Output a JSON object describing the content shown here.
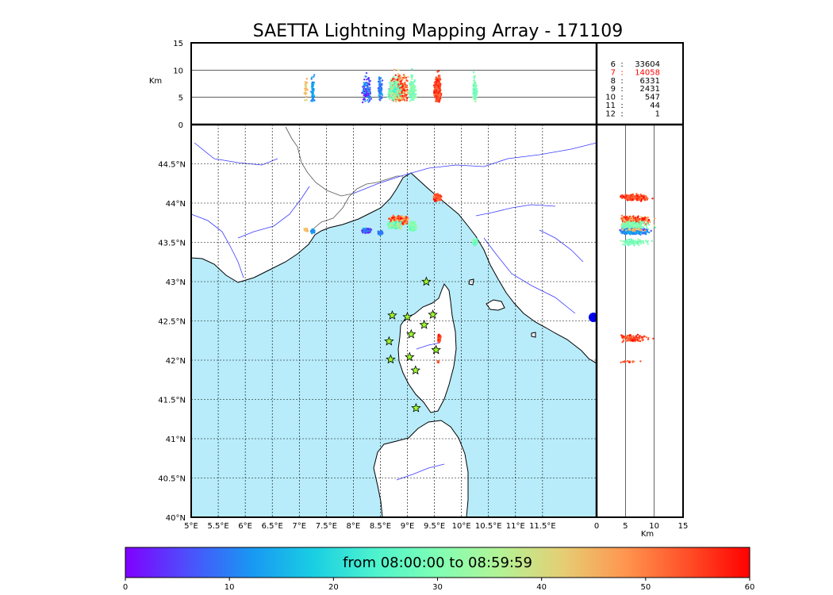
{
  "title": "SAETTA Lightning Mapping Array - 171109",
  "colorbar": {
    "label": "from 08:00:00 to 08:59:59",
    "min": 0,
    "max": 60,
    "ticks": [
      "0",
      "10",
      "20",
      "30",
      "40",
      "50",
      "60"
    ]
  },
  "colors": {
    "sea": "#b8ecfa",
    "land": "#ffffff",
    "rivers": "#3a3aff",
    "stations": "#9cff2c"
  },
  "map": {
    "lon_range": [
      5,
      12.5
    ],
    "lat_range": [
      40,
      45
    ],
    "lon_ticks": [
      "5°E",
      "5.5°E",
      "6°E",
      "6.5°E",
      "7°E",
      "7.5°E",
      "8°E",
      "8.5°E",
      "9°E",
      "9.5°E",
      "10°E",
      "10.5°E",
      "11°E",
      "11.5°E"
    ],
    "lat_ticks": [
      "40°N",
      "40.5°N",
      "41°N",
      "41.5°N",
      "42°N",
      "42.5°N",
      "43°N",
      "43.5°N",
      "44°N",
      "44.5°N"
    ],
    "stations": [
      {
        "lon": 9.35,
        "lat": 43.0
      },
      {
        "lon": 8.72,
        "lat": 42.57
      },
      {
        "lon": 9.0,
        "lat": 42.55
      },
      {
        "lon": 9.47,
        "lat": 42.58
      },
      {
        "lon": 9.31,
        "lat": 42.45
      },
      {
        "lon": 9.07,
        "lat": 42.33
      },
      {
        "lon": 8.66,
        "lat": 42.24
      },
      {
        "lon": 9.53,
        "lat": 42.13
      },
      {
        "lon": 8.69,
        "lat": 42.01
      },
      {
        "lon": 9.04,
        "lat": 42.04
      },
      {
        "lon": 9.15,
        "lat": 41.87
      },
      {
        "lon": 9.16,
        "lat": 41.39
      }
    ],
    "clusters": [
      {
        "lon": 8.85,
        "lat": 43.78,
        "spread": [
          0.22,
          0.07
        ],
        "tmin": 42,
        "tmax": 60,
        "n": 380
      },
      {
        "lon": 8.75,
        "lat": 43.72,
        "spread": [
          0.2,
          0.06
        ],
        "tmin": 22,
        "tmax": 40,
        "n": 160
      },
      {
        "lon": 9.1,
        "lat": 43.7,
        "spread": [
          0.09,
          0.08
        ],
        "tmin": 26,
        "tmax": 34,
        "n": 120
      },
      {
        "lon": 9.55,
        "lat": 44.07,
        "spread": [
          0.08,
          0.06
        ],
        "tmin": 50,
        "tmax": 60,
        "n": 200
      },
      {
        "lon": 8.25,
        "lat": 43.65,
        "spread": [
          0.12,
          0.04
        ],
        "tmin": 0,
        "tmax": 14,
        "n": 110
      },
      {
        "lon": 8.5,
        "lat": 43.62,
        "spread": [
          0.06,
          0.03
        ],
        "tmin": 6,
        "tmax": 14,
        "n": 60
      },
      {
        "lon": 7.25,
        "lat": 43.64,
        "spread": [
          0.05,
          0.04
        ],
        "tmin": 10,
        "tmax": 18,
        "n": 60
      },
      {
        "lon": 7.12,
        "lat": 43.66,
        "spread": [
          0.04,
          0.02
        ],
        "tmin": 40,
        "tmax": 48,
        "n": 25
      },
      {
        "lon": 10.25,
        "lat": 43.5,
        "spread": [
          0.05,
          0.05
        ],
        "tmin": 25,
        "tmax": 34,
        "n": 90
      },
      {
        "lon": 9.59,
        "lat": 42.28,
        "spread": [
          0.03,
          0.06
        ],
        "tmin": 50,
        "tmax": 60,
        "n": 110
      },
      {
        "lon": 9.57,
        "lat": 41.98,
        "spread": [
          0.015,
          0.02
        ],
        "tmin": 50,
        "tmax": 58,
        "n": 15
      }
    ]
  },
  "altitude_panel": {
    "ylabel": "Km",
    "ylim": [
      0,
      15
    ],
    "yticks": [
      "0",
      "5",
      "10",
      "15"
    ]
  },
  "lat_panel": {
    "xlabel": "Km",
    "xlim": [
      0,
      15
    ],
    "xticks": [
      "0",
      "5",
      "10",
      "15"
    ]
  },
  "station_counts": [
    {
      "stations": "6",
      "count": "33604",
      "color": "#000000"
    },
    {
      "stations": "7",
      "count": "14058",
      "color": "#ff0000"
    },
    {
      "stations": "8",
      "count": "6331",
      "color": "#000000"
    },
    {
      "stations": "9",
      "count": "2431",
      "color": "#000000"
    },
    {
      "stations": "10",
      "count": "547",
      "color": "#000000"
    },
    {
      "stations": "11",
      "count": "44",
      "color": "#000000"
    },
    {
      "stations": "12",
      "count": "1",
      "color": "#000000"
    }
  ]
}
